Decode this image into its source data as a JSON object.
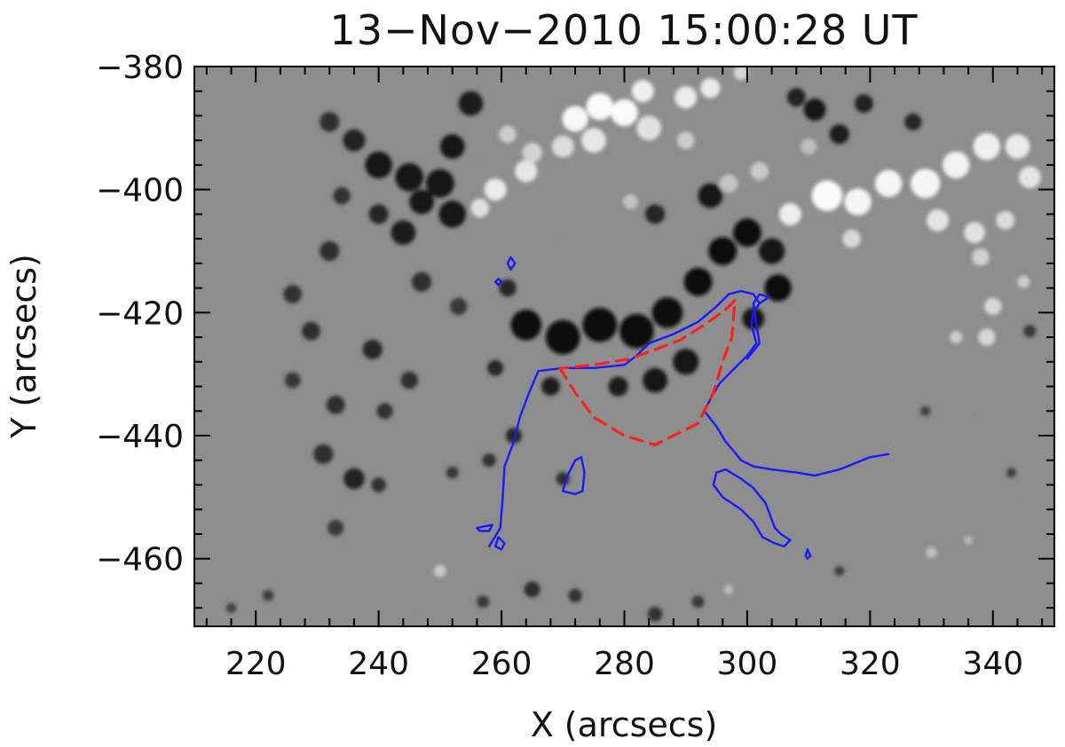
{
  "chart_data": {
    "type": "image",
    "title": "13−Nov−2010  15:00:28  UT",
    "xlabel": "X (arcsecs)",
    "ylabel": "Y (arcsecs)",
    "xlim": [
      210,
      350
    ],
    "ylim": [
      -471,
      -380
    ],
    "x_ticks": [
      220,
      240,
      260,
      280,
      300,
      320,
      340
    ],
    "x_tick_labels": [
      "220",
      "240",
      "260",
      "280",
      "300",
      "320",
      "340"
    ],
    "y_ticks": [
      -380,
      -400,
      -420,
      -440,
      -460
    ],
    "y_tick_labels": [
      "−380",
      "−400",
      "−420",
      "−440",
      "−460"
    ],
    "image": "grayscale line-of-sight magnetogram: white = positive polarity, black = negative polarity",
    "colors": {
      "contour": "#1a1aff",
      "dashed_outline": "#ff2020",
      "background": "#8a8a8a"
    },
    "overlays": [
      {
        "name": "blue-contour-main",
        "style": "solid",
        "color": "#1a1aff",
        "points": [
          [
            258,
            -458
          ],
          [
            259.8,
            -455
          ],
          [
            260.2,
            -450
          ],
          [
            260.5,
            -445
          ],
          [
            262,
            -441
          ],
          [
            263,
            -437
          ],
          [
            264.5,
            -433
          ],
          [
            266,
            -429.5
          ],
          [
            270,
            -429
          ],
          [
            275,
            -429
          ],
          [
            280,
            -428.5
          ],
          [
            282,
            -427
          ],
          [
            284,
            -425
          ],
          [
            288,
            -423.5
          ],
          [
            292,
            -421.5
          ],
          [
            295,
            -419
          ],
          [
            297,
            -417
          ],
          [
            299,
            -416.5
          ],
          [
            301,
            -417
          ],
          [
            302,
            -418.5
          ],
          [
            301,
            -420
          ],
          [
            300.7,
            -422
          ],
          [
            301.5,
            -425
          ],
          [
            300,
            -427
          ],
          [
            297.5,
            -429.5
          ],
          [
            295.5,
            -431.5
          ],
          [
            294.3,
            -433.5
          ],
          [
            293,
            -436
          ],
          [
            295,
            -438.5
          ],
          [
            296.5,
            -441
          ],
          [
            297.8,
            -442.5
          ],
          [
            299,
            -444
          ],
          [
            301,
            -445
          ],
          [
            304,
            -445.5
          ],
          [
            308,
            -446
          ],
          [
            311,
            -446.5
          ],
          [
            315,
            -445.5
          ],
          [
            320,
            -443.5
          ],
          [
            323,
            -443
          ]
        ]
      },
      {
        "name": "blue-contour-branch",
        "style": "solid",
        "color": "#1a1aff",
        "points": [
          [
            302,
            -418.5
          ],
          [
            303.5,
            -417.5
          ],
          [
            302,
            -417
          ],
          [
            301,
            -418.5
          ],
          [
            301.5,
            -422
          ],
          [
            302,
            -425
          ],
          [
            300,
            -427.5
          ]
        ]
      },
      {
        "name": "blue-contour-loop-right",
        "style": "solid",
        "color": "#1a1aff",
        "points": [
          [
            295,
            -446
          ],
          [
            294.5,
            -448
          ],
          [
            296,
            -450
          ],
          [
            299,
            -452
          ],
          [
            301,
            -454
          ],
          [
            302.5,
            -456.5
          ],
          [
            304.5,
            -457.5
          ],
          [
            306,
            -458
          ],
          [
            307,
            -457
          ],
          [
            305.5,
            -456
          ],
          [
            304.5,
            -455
          ],
          [
            303,
            -451
          ],
          [
            301,
            -448.5
          ],
          [
            299,
            -447
          ],
          [
            296.5,
            -445.5
          ],
          [
            295,
            -446
          ]
        ]
      },
      {
        "name": "blue-contour-loop-left",
        "style": "solid",
        "color": "#1a1aff",
        "points": [
          [
            272,
            -444
          ],
          [
            273,
            -443.5
          ],
          [
            273.5,
            -446
          ],
          [
            273.2,
            -449
          ],
          [
            272,
            -449.5
          ],
          [
            270,
            -449
          ],
          [
            270.5,
            -447
          ],
          [
            272,
            -444
          ]
        ]
      },
      {
        "name": "blue-contour-small-1",
        "style": "solid",
        "color": "#1a1aff",
        "points": [
          [
            261.5,
            -411
          ],
          [
            262.2,
            -412
          ],
          [
            261.5,
            -413
          ],
          [
            261,
            -412
          ],
          [
            261.5,
            -411
          ]
        ]
      },
      {
        "name": "blue-contour-small-2",
        "style": "solid",
        "color": "#1a1aff",
        "points": [
          [
            259.5,
            -414.5
          ],
          [
            260,
            -415
          ],
          [
            259.5,
            -415.5
          ],
          [
            259,
            -415
          ],
          [
            259.5,
            -414.5
          ]
        ]
      },
      {
        "name": "blue-contour-small-3",
        "style": "solid",
        "color": "#1a1aff",
        "points": [
          [
            259.5,
            -456.5
          ],
          [
            260.5,
            -457.5
          ],
          [
            260,
            -458.5
          ],
          [
            259,
            -458
          ],
          [
            259.5,
            -456.5
          ]
        ]
      },
      {
        "name": "blue-contour-small-4",
        "style": "solid",
        "color": "#1a1aff",
        "points": [
          [
            309.8,
            -458.5
          ],
          [
            310.3,
            -459.5
          ],
          [
            309.8,
            -460
          ],
          [
            309.5,
            -459.5
          ],
          [
            309.8,
            -458.5
          ]
        ]
      },
      {
        "name": "blue-contour-small-5",
        "style": "solid",
        "color": "#1a1aff",
        "points": [
          [
            256,
            -455
          ],
          [
            258.5,
            -454.5
          ],
          [
            258,
            -455.5
          ],
          [
            256.5,
            -455.5
          ],
          [
            256,
            -455
          ]
        ]
      },
      {
        "name": "red-dashed-outline",
        "style": "dashed",
        "color": "#ff2020",
        "points": [
          [
            269.5,
            -429
          ],
          [
            272,
            -433
          ],
          [
            275,
            -437
          ],
          [
            280,
            -440
          ],
          [
            285,
            -441.5
          ],
          [
            292,
            -438
          ],
          [
            294.5,
            -433
          ],
          [
            296,
            -428
          ],
          [
            297.5,
            -424
          ],
          [
            298,
            -418
          ],
          [
            296.5,
            -419.5
          ],
          [
            293,
            -422
          ],
          [
            289,
            -424.5
          ],
          [
            285,
            -426
          ],
          [
            281,
            -427.5
          ],
          [
            275,
            -428.5
          ],
          [
            270,
            -429
          ]
        ]
      }
    ],
    "bright_patches": [
      {
        "x": 280,
        "y": -387.5,
        "r": 2.2,
        "v": 250
      },
      {
        "x": 276,
        "y": -386.5,
        "r": 2.2,
        "v": 250
      },
      {
        "x": 272,
        "y": -388.5,
        "r": 2.1,
        "v": 248
      },
      {
        "x": 283,
        "y": -384,
        "r": 1.8,
        "v": 240
      },
      {
        "x": 290,
        "y": -385,
        "r": 1.8,
        "v": 235
      },
      {
        "x": 294,
        "y": -383.5,
        "r": 1.6,
        "v": 235
      },
      {
        "x": 275,
        "y": -392,
        "r": 2.0,
        "v": 230
      },
      {
        "x": 284,
        "y": -390,
        "r": 2.0,
        "v": 225
      },
      {
        "x": 270,
        "y": -393,
        "r": 1.8,
        "v": 220
      },
      {
        "x": 264,
        "y": -397,
        "r": 1.8,
        "v": 230
      },
      {
        "x": 259,
        "y": -400,
        "r": 1.8,
        "v": 235
      },
      {
        "x": 256.5,
        "y": -403,
        "r": 1.5,
        "v": 225
      },
      {
        "x": 261,
        "y": -391,
        "r": 1.4,
        "v": 205
      },
      {
        "x": 265,
        "y": -394,
        "r": 1.6,
        "v": 210
      },
      {
        "x": 302,
        "y": -397,
        "r": 1.5,
        "v": 200
      },
      {
        "x": 297,
        "y": -399,
        "r": 1.5,
        "v": 195
      },
      {
        "x": 310,
        "y": -393,
        "r": 1.3,
        "v": 190
      },
      {
        "x": 313,
        "y": -401,
        "r": 2.5,
        "v": 250
      },
      {
        "x": 318,
        "y": -402,
        "r": 2.2,
        "v": 245
      },
      {
        "x": 323,
        "y": -399,
        "r": 2.2,
        "v": 245
      },
      {
        "x": 329,
        "y": -399,
        "r": 2.4,
        "v": 245
      },
      {
        "x": 334,
        "y": -396,
        "r": 2.2,
        "v": 242
      },
      {
        "x": 339,
        "y": -393,
        "r": 2.2,
        "v": 240
      },
      {
        "x": 344,
        "y": -393,
        "r": 2.0,
        "v": 235
      },
      {
        "x": 346,
        "y": -398,
        "r": 1.8,
        "v": 228
      },
      {
        "x": 331,
        "y": -405,
        "r": 1.8,
        "v": 228
      },
      {
        "x": 337,
        "y": -407,
        "r": 1.7,
        "v": 225
      },
      {
        "x": 342,
        "y": -405,
        "r": 1.5,
        "v": 220
      },
      {
        "x": 307,
        "y": -404,
        "r": 1.8,
        "v": 238
      },
      {
        "x": 317,
        "y": -408,
        "r": 1.5,
        "v": 215
      },
      {
        "x": 338,
        "y": -411,
        "r": 1.4,
        "v": 210
      },
      {
        "x": 340,
        "y": -419,
        "r": 1.4,
        "v": 215
      },
      {
        "x": 339,
        "y": -424,
        "r": 1.4,
        "v": 215
      },
      {
        "x": 334,
        "y": -424,
        "r": 1.0,
        "v": 205
      },
      {
        "x": 345,
        "y": -415,
        "r": 1.0,
        "v": 205
      },
      {
        "x": 299,
        "y": -381,
        "r": 1.2,
        "v": 215
      },
      {
        "x": 281,
        "y": -402,
        "r": 1.2,
        "v": 195
      },
      {
        "x": 290,
        "y": -392,
        "r": 1.4,
        "v": 205
      },
      {
        "x": 250,
        "y": -462,
        "r": 1.0,
        "v": 200
      },
      {
        "x": 297,
        "y": -465,
        "r": 0.8,
        "v": 185
      },
      {
        "x": 330,
        "y": -459,
        "r": 0.9,
        "v": 190
      },
      {
        "x": 336,
        "y": -457,
        "r": 0.7,
        "v": 185
      }
    ],
    "dark_patches": [
      {
        "x": 232,
        "y": -389,
        "r": 1.6,
        "v": 45
      },
      {
        "x": 236,
        "y": -392,
        "r": 1.8,
        "v": 35
      },
      {
        "x": 240,
        "y": -396,
        "r": 2.2,
        "v": 25
      },
      {
        "x": 245,
        "y": -398,
        "r": 2.3,
        "v": 20
      },
      {
        "x": 250,
        "y": -399,
        "r": 2.3,
        "v": 20
      },
      {
        "x": 247,
        "y": -402,
        "r": 2.0,
        "v": 25
      },
      {
        "x": 252,
        "y": -404,
        "r": 2.2,
        "v": 20
      },
      {
        "x": 255,
        "y": -386,
        "r": 2.0,
        "v": 30
      },
      {
        "x": 252,
        "y": -393,
        "r": 2.0,
        "v": 25
      },
      {
        "x": 244,
        "y": -407,
        "r": 2.0,
        "v": 30
      },
      {
        "x": 240,
        "y": -404,
        "r": 1.6,
        "v": 40
      },
      {
        "x": 234,
        "y": -401,
        "r": 1.4,
        "v": 50
      },
      {
        "x": 232,
        "y": -410,
        "r": 1.6,
        "v": 45
      },
      {
        "x": 226,
        "y": -417,
        "r": 1.5,
        "v": 50
      },
      {
        "x": 229,
        "y": -423,
        "r": 1.5,
        "v": 45
      },
      {
        "x": 239,
        "y": -426,
        "r": 1.6,
        "v": 40
      },
      {
        "x": 245,
        "y": -431,
        "r": 1.4,
        "v": 45
      },
      {
        "x": 241,
        "y": -436,
        "r": 1.3,
        "v": 50
      },
      {
        "x": 233,
        "y": -435,
        "r": 1.5,
        "v": 45
      },
      {
        "x": 226,
        "y": -431,
        "r": 1.3,
        "v": 55
      },
      {
        "x": 231,
        "y": -443,
        "r": 1.6,
        "v": 45
      },
      {
        "x": 236,
        "y": -447,
        "r": 1.7,
        "v": 35
      },
      {
        "x": 240,
        "y": -448,
        "r": 1.2,
        "v": 50
      },
      {
        "x": 233,
        "y": -455,
        "r": 1.3,
        "v": 55
      },
      {
        "x": 247,
        "y": -415,
        "r": 1.6,
        "v": 45
      },
      {
        "x": 253,
        "y": -419,
        "r": 1.4,
        "v": 55
      },
      {
        "x": 264,
        "y": -422,
        "r": 2.5,
        "v": 15
      },
      {
        "x": 270,
        "y": -424,
        "r": 2.8,
        "v": 10
      },
      {
        "x": 276,
        "y": -422,
        "r": 2.8,
        "v": 10
      },
      {
        "x": 282,
        "y": -423,
        "r": 2.8,
        "v": 10
      },
      {
        "x": 287,
        "y": -420,
        "r": 2.5,
        "v": 12
      },
      {
        "x": 292,
        "y": -415,
        "r": 2.3,
        "v": 15
      },
      {
        "x": 296,
        "y": -410,
        "r": 2.3,
        "v": 15
      },
      {
        "x": 300,
        "y": -407,
        "r": 2.3,
        "v": 15
      },
      {
        "x": 304,
        "y": -410,
        "r": 2.1,
        "v": 18
      },
      {
        "x": 305,
        "y": -416,
        "r": 2.2,
        "v": 15
      },
      {
        "x": 301,
        "y": -421,
        "r": 1.8,
        "v": 20
      },
      {
        "x": 290,
        "y": -428,
        "r": 2.1,
        "v": 18
      },
      {
        "x": 285,
        "y": -431,
        "r": 2.0,
        "v": 20
      },
      {
        "x": 279,
        "y": -432,
        "r": 1.6,
        "v": 30
      },
      {
        "x": 294,
        "y": -401,
        "r": 2.0,
        "v": 25
      },
      {
        "x": 285,
        "y": -404,
        "r": 1.6,
        "v": 40
      },
      {
        "x": 268,
        "y": -432,
        "r": 1.5,
        "v": 30
      },
      {
        "x": 259,
        "y": -429,
        "r": 1.3,
        "v": 40
      },
      {
        "x": 261,
        "y": -416,
        "r": 1.4,
        "v": 40
      },
      {
        "x": 262,
        "y": -440,
        "r": 1.3,
        "v": 40
      },
      {
        "x": 258,
        "y": -444,
        "r": 1.1,
        "v": 50
      },
      {
        "x": 270,
        "y": -447,
        "r": 1.1,
        "v": 45
      },
      {
        "x": 252,
        "y": -446,
        "r": 1.0,
        "v": 55
      },
      {
        "x": 265,
        "y": -465,
        "r": 1.3,
        "v": 45
      },
      {
        "x": 272,
        "y": -466,
        "r": 1.1,
        "v": 50
      },
      {
        "x": 257,
        "y": -467,
        "r": 1.0,
        "v": 55
      },
      {
        "x": 285,
        "y": -469,
        "r": 1.2,
        "v": 50
      },
      {
        "x": 292,
        "y": -467,
        "r": 1.0,
        "v": 55
      },
      {
        "x": 222,
        "y": -466,
        "r": 0.9,
        "v": 60
      },
      {
        "x": 216,
        "y": -468,
        "r": 0.8,
        "v": 65
      },
      {
        "x": 311,
        "y": -387,
        "r": 1.8,
        "v": 25
      },
      {
        "x": 315,
        "y": -391,
        "r": 1.6,
        "v": 30
      },
      {
        "x": 319,
        "y": -386,
        "r": 1.5,
        "v": 35
      },
      {
        "x": 308,
        "y": -385,
        "r": 1.5,
        "v": 35
      },
      {
        "x": 327,
        "y": -389,
        "r": 1.4,
        "v": 40
      },
      {
        "x": 346,
        "y": -423,
        "r": 1.0,
        "v": 55
      },
      {
        "x": 329,
        "y": -436,
        "r": 0.8,
        "v": 65
      },
      {
        "x": 343,
        "y": -446,
        "r": 0.8,
        "v": 65
      },
      {
        "x": 315,
        "y": -462,
        "r": 0.8,
        "v": 65
      }
    ]
  }
}
